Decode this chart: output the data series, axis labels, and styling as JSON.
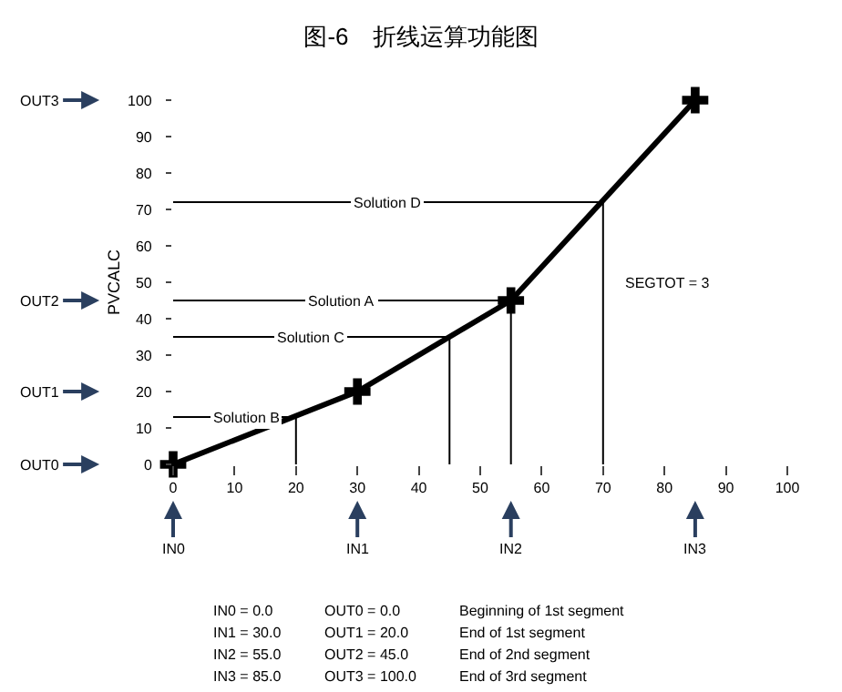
{
  "chart_data": {
    "type": "line",
    "title": "图-6　折线运算功能图",
    "ylabel": "PVCALC",
    "x": [
      0,
      30,
      55,
      85
    ],
    "series": [
      {
        "color": "#000000",
        "values": [
          0,
          20,
          45,
          100
        ],
        "marker": "cross"
      },
      {
        "name": "Solution D",
        "color": "#000000",
        "x": [
          0,
          70,
          70
        ],
        "values": [
          72,
          72,
          0
        ]
      },
      {
        "name": "Solution A",
        "color": "#000000",
        "x": [
          0,
          55,
          55
        ],
        "values": [
          45,
          45,
          0
        ]
      },
      {
        "name": "Solution C",
        "color": "#000000",
        "x": [
          0,
          45,
          45
        ],
        "values": [
          35,
          35,
          0
        ]
      },
      {
        "name": "Solution B",
        "color": "#000000",
        "x": [
          0,
          20,
          20
        ],
        "values": [
          13,
          13,
          0
        ]
      }
    ],
    "legend": false,
    "xlim": [
      0,
      100
    ],
    "xticks": [
      0,
      10,
      20,
      30,
      40,
      50,
      60,
      70,
      80,
      90,
      100
    ],
    "ylim": [
      0,
      100
    ],
    "yticks": [
      0,
      10,
      20,
      30,
      40,
      50,
      60,
      70,
      80,
      90,
      100
    ],
    "annotations": [
      "OUT0",
      "OUT1",
      "OUT2",
      "OUT3",
      "IN0",
      "IN1",
      "IN2",
      "IN3",
      "SEGTOT = 3",
      "IN0 = 0.0",
      "OUT0 = 0.0",
      "Beginning of 1st segment",
      "IN1 = 30.0",
      "OUT1 = 20.0",
      "End of 1st segment",
      "IN2 = 55.0",
      "OUT2 = 45.0",
      "End of 2nd segment",
      "IN3 = 85.0",
      "OUT3 = 100.0",
      "End of 3rd segment"
    ]
  }
}
